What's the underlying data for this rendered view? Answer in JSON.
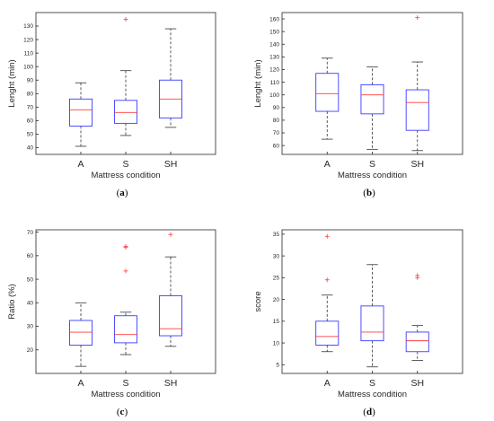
{
  "colors": {
    "box": "#3b3bff",
    "median": "#ff3b3b",
    "outlier": "#ff3b3b",
    "whisker": "#333333",
    "axis": "#262626"
  },
  "chart_data": [
    {
      "type": "box",
      "panel_label": "a",
      "xlabel": "Mattress condition",
      "ylabel": "Lenght (min)",
      "ylim": [
        35,
        140
      ],
      "yticks": [
        40,
        50,
        60,
        70,
        80,
        90,
        100,
        110,
        120,
        130
      ],
      "categories": [
        "A",
        "S",
        "SH"
      ],
      "boxes": [
        {
          "min": 41,
          "q1": 56,
          "median": 68,
          "q3": 76,
          "max": 88,
          "outliers": []
        },
        {
          "min": 49,
          "q1": 58,
          "median": 66,
          "q3": 75,
          "max": 97,
          "outliers": [
            135
          ]
        },
        {
          "min": 55,
          "q1": 62,
          "median": 76,
          "q3": 90,
          "max": 128,
          "outliers": []
        }
      ]
    },
    {
      "type": "box",
      "panel_label": "b",
      "xlabel": "Mattress condition",
      "ylabel": "Lenght (min)",
      "ylim": [
        53,
        165
      ],
      "yticks": [
        60,
        70,
        80,
        90,
        100,
        110,
        120,
        130,
        140,
        150,
        160
      ],
      "categories": [
        "A",
        "S",
        "SH"
      ],
      "boxes": [
        {
          "min": 65,
          "q1": 87,
          "median": 101,
          "q3": 117,
          "max": 129,
          "outliers": []
        },
        {
          "min": 57,
          "q1": 85,
          "median": 100,
          "q3": 108,
          "max": 122,
          "outliers": []
        },
        {
          "min": 56,
          "q1": 72,
          "median": 94,
          "q3": 104,
          "max": 126,
          "outliers": [
            161
          ]
        }
      ]
    },
    {
      "type": "box",
      "panel_label": "c",
      "xlabel": "Mattress condition",
      "ylabel": "Ratio (%)",
      "ylim": [
        10,
        71
      ],
      "yticks": [
        20,
        30,
        40,
        50,
        60,
        70
      ],
      "categories": [
        "A",
        "S",
        "SH"
      ],
      "boxes": [
        {
          "min": 13,
          "q1": 22,
          "median": 27.5,
          "q3": 32.5,
          "max": 40,
          "outliers": []
        },
        {
          "min": 18,
          "q1": 23,
          "median": 26.5,
          "q3": 34.5,
          "max": 36,
          "outliers": [
            53.5,
            63.5,
            64
          ]
        },
        {
          "min": 21.5,
          "q1": 26,
          "median": 29,
          "q3": 43,
          "max": 59.5,
          "outliers": [
            69
          ]
        }
      ]
    },
    {
      "type": "box",
      "panel_label": "d",
      "xlabel": "Mattress condition",
      "ylabel": "score",
      "ylim": [
        3,
        36
      ],
      "yticks": [
        5,
        10,
        15,
        20,
        25,
        30,
        35
      ],
      "categories": [
        "A",
        "S",
        "SH"
      ],
      "boxes": [
        {
          "min": 8,
          "q1": 9.5,
          "median": 11.5,
          "q3": 15,
          "max": 21,
          "outliers": [
            24.5,
            34.5
          ]
        },
        {
          "min": 4.5,
          "q1": 10.5,
          "median": 12.5,
          "q3": 18.5,
          "max": 28,
          "outliers": []
        },
        {
          "min": 6,
          "q1": 8,
          "median": 10.5,
          "q3": 12.5,
          "max": 14,
          "outliers": [
            25,
            25.5
          ]
        }
      ]
    }
  ],
  "captions": [
    "a",
    "b",
    "c",
    "d"
  ]
}
